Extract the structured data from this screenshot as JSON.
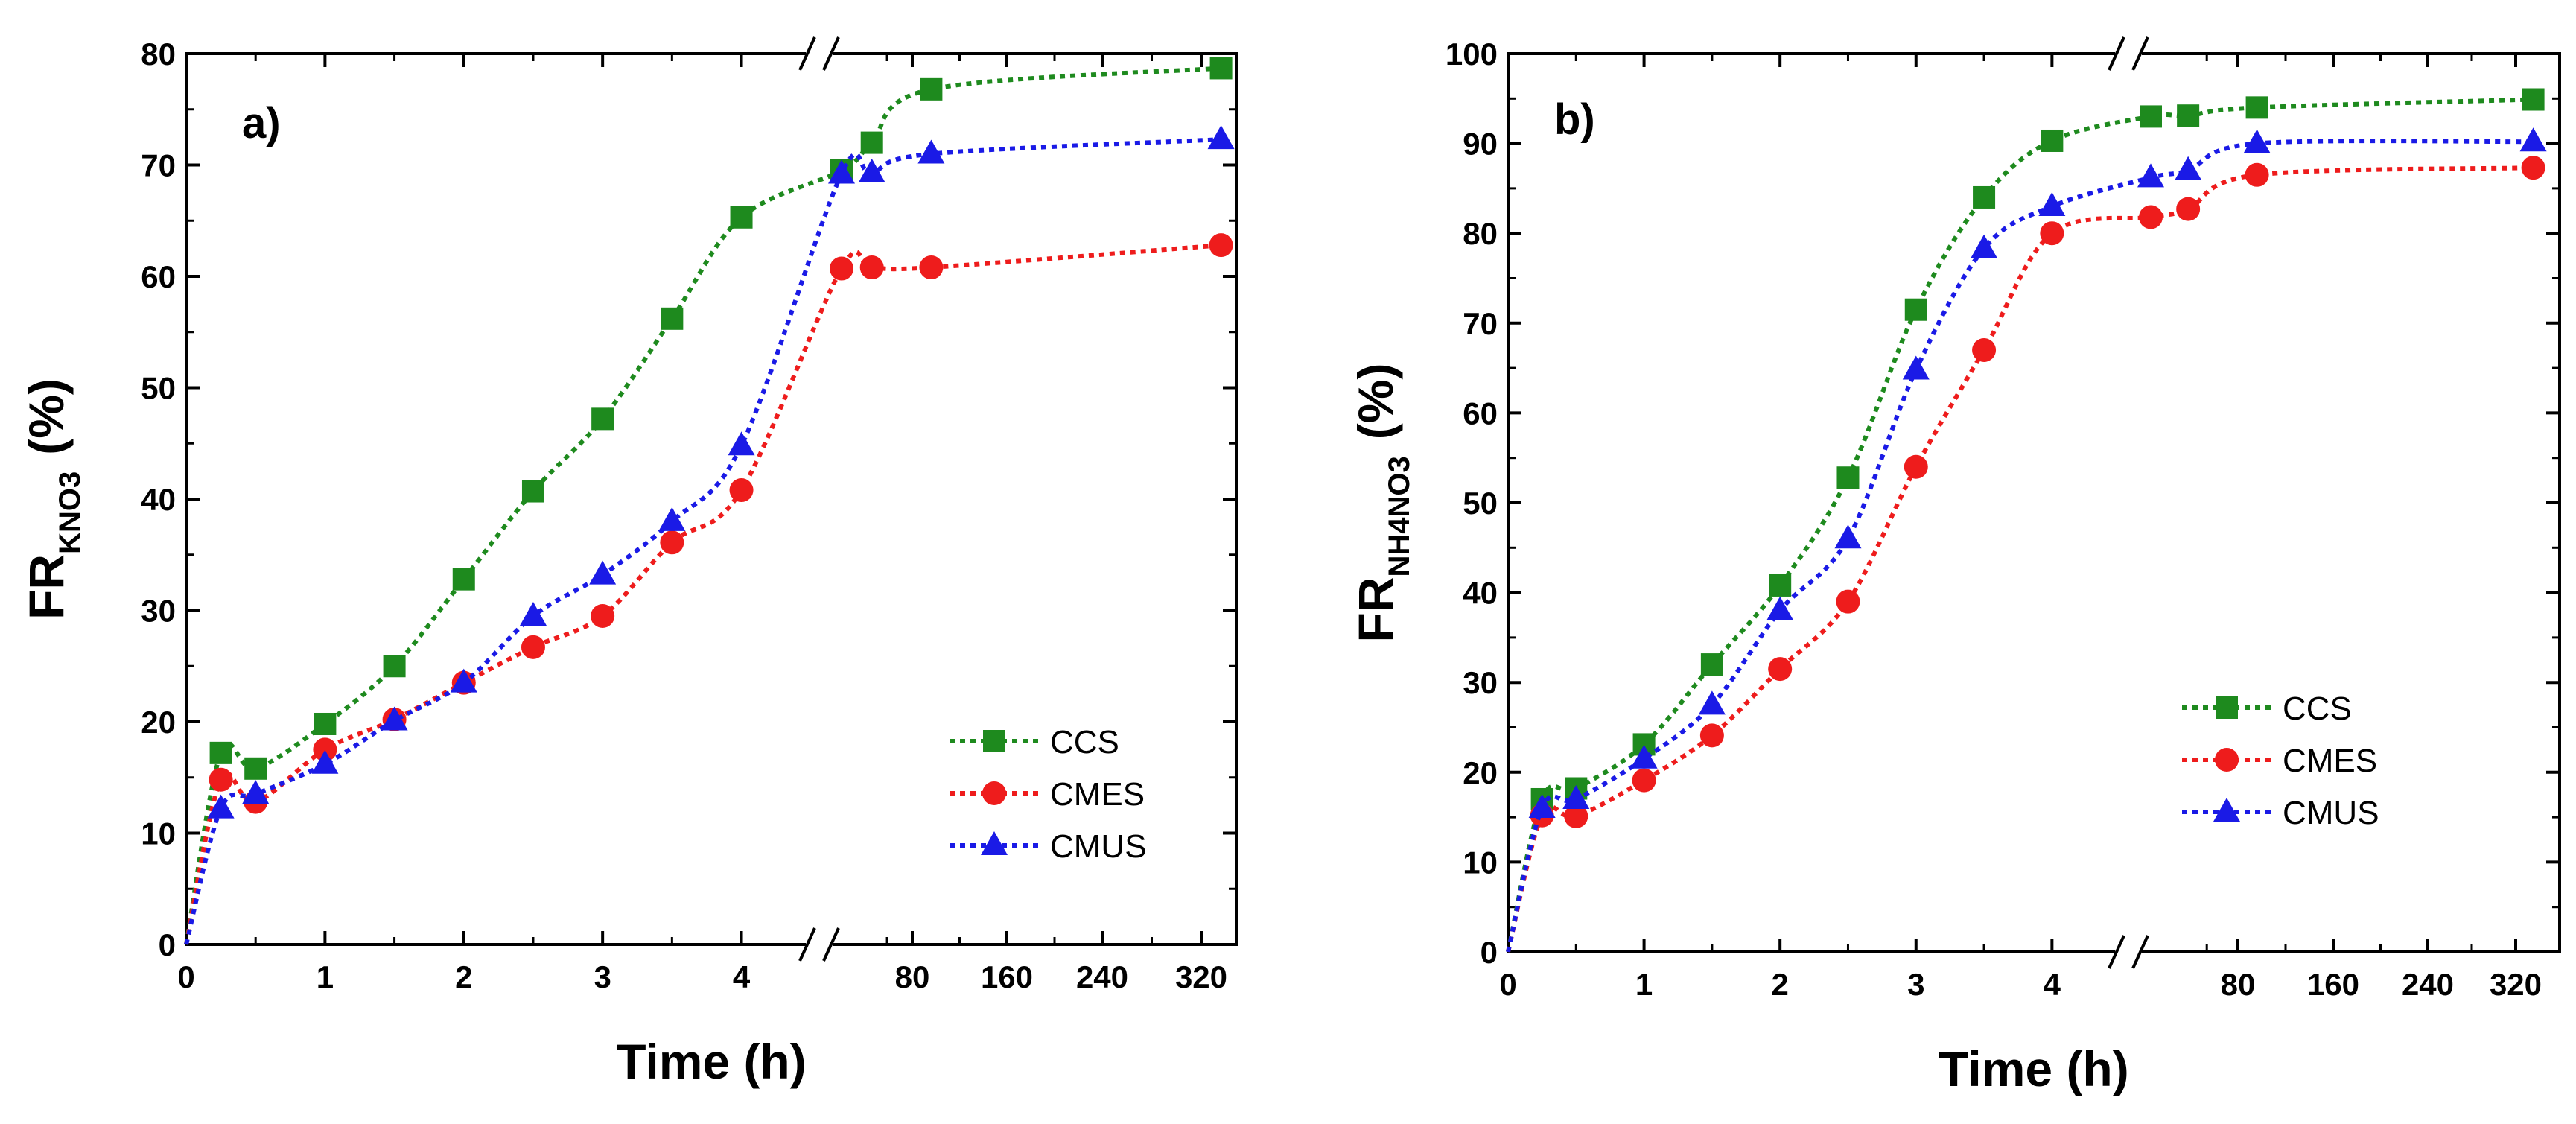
{
  "colors": {
    "CCS": "#1e8a1e",
    "CMES": "#ee1c1c",
    "CMUS": "#1a1ae6"
  },
  "chart_data": [
    {
      "type": "line",
      "panel_label": "a)",
      "xlabel": "Time (h)",
      "ylabel_main": "FR",
      "ylabel_sub": "KNO3",
      "ylabel_unit": "(%)",
      "ylim": [
        0,
        80
      ],
      "y_ticks": [
        0,
        10,
        20,
        30,
        40,
        50,
        60,
        70,
        80
      ],
      "x_ticks_low": [
        "0",
        "1",
        "2",
        "3",
        "4"
      ],
      "x_ticks_high": [
        "80",
        "160",
        "240",
        "320"
      ],
      "x_axis_note": "broken axis: 0-4 h linear, then 48-330 h",
      "legend": [
        "CCS",
        "CMES",
        "CMUS"
      ],
      "series": [
        {
          "name": "CCS",
          "marker": "square",
          "low": {
            "x": [
              0,
              0.25,
              0.5,
              1,
              1.5,
              2,
              2.5,
              3,
              3.5,
              4
            ],
            "y": [
              0,
              17.2,
              15.8,
              19.8,
              25,
              32.8,
              40.7,
              47.2,
              56.2,
              65.3
            ]
          },
          "high": {
            "x": [
              24,
              48,
              96,
              336
            ],
            "y": [
              69.5,
              72,
              76.8,
              78.7
            ]
          }
        },
        {
          "name": "CMES",
          "marker": "circle",
          "low": {
            "x": [
              0,
              0.25,
              0.5,
              1,
              1.5,
              2,
              2.5,
              3,
              3.5,
              4
            ],
            "y": [
              0,
              14.8,
              12.8,
              17.5,
              20.2,
              23.5,
              26.7,
              29.5,
              36.1,
              40.8
            ]
          },
          "high": {
            "x": [
              24,
              48,
              96,
              336
            ],
            "y": [
              60.7,
              60.8,
              60.8,
              62.8
            ]
          }
        },
        {
          "name": "CMUS",
          "marker": "triangle",
          "low": {
            "x": [
              0,
              0.25,
              0.5,
              1,
              1.5,
              2,
              2.5,
              3,
              3.5,
              4
            ],
            "y": [
              0,
              12.2,
              13.5,
              16.2,
              20.1,
              23.5,
              29.5,
              33.2,
              38,
              44.8
            ]
          },
          "high": {
            "x": [
              24,
              48,
              96,
              336
            ],
            "y": [
              69.2,
              69.3,
              71,
              72.3
            ]
          }
        }
      ]
    },
    {
      "type": "line",
      "panel_label": "b)",
      "xlabel": "Time (h)",
      "ylabel_main": "FR",
      "ylabel_sub": "NH4NO3",
      "ylabel_unit": "(%)",
      "ylim": [
        0,
        100
      ],
      "y_ticks": [
        0,
        10,
        20,
        30,
        40,
        50,
        60,
        70,
        80,
        90,
        100
      ],
      "x_ticks_low": [
        "0",
        "1",
        "2",
        "3",
        "4"
      ],
      "x_ticks_high": [
        "80",
        "160",
        "240",
        "320"
      ],
      "x_axis_note": "broken axis: 0-4 h linear, then 48-330 h",
      "legend": [
        "CCS",
        "CMES",
        "CMUS"
      ],
      "series": [
        {
          "name": "CCS",
          "marker": "square",
          "low": {
            "x": [
              0,
              0.25,
              0.5,
              1,
              1.5,
              2,
              2.5,
              3,
              3.5,
              4
            ],
            "y": [
              0,
              17,
              18.2,
              23.1,
              32,
              40.8,
              52.8,
              71.5,
              84,
              90.3
            ]
          },
          "high": {
            "x": [
              24,
              48,
              96,
              336
            ],
            "y": [
              93,
              93.1,
              94,
              94.9
            ]
          }
        },
        {
          "name": "CMES",
          "marker": "circle",
          "low": {
            "x": [
              0,
              0.25,
              0.5,
              1,
              1.5,
              2,
              2.5,
              3,
              3.5,
              4
            ],
            "y": [
              0,
              15.2,
              15.1,
              19.1,
              24.1,
              31.5,
              39,
              54,
              67,
              80
            ]
          },
          "high": {
            "x": [
              24,
              48,
              96,
              336
            ],
            "y": [
              81.8,
              82.7,
              86.5,
              87.3
            ]
          }
        },
        {
          "name": "CMUS",
          "marker": "triangle",
          "low": {
            "x": [
              0,
              0.25,
              0.5,
              1,
              1.5,
              2,
              2.5,
              3,
              3.5,
              4
            ],
            "y": [
              0,
              16,
              17,
              21.5,
              27.5,
              38,
              46,
              64.8,
              78.3,
              83
            ]
          },
          "high": {
            "x": [
              24,
              48,
              96,
              336
            ],
            "y": [
              86.2,
              87,
              90,
              90.2
            ]
          }
        }
      ]
    }
  ]
}
